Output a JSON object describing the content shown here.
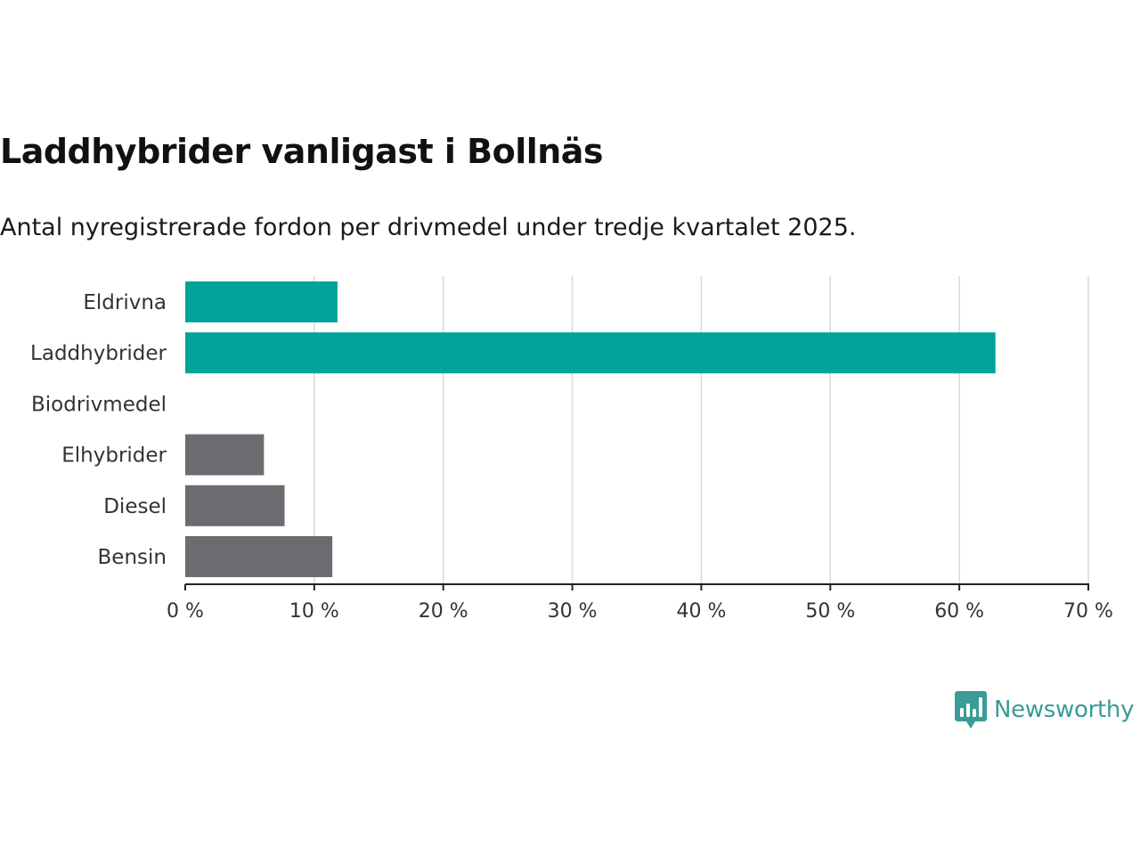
{
  "title": "Laddhybrider vanligast i Bollnäs",
  "subtitle": "Antal nyregistrerade fordon per drivmedel under tredje kvartalet 2025.",
  "brand": {
    "name": "Newsworthy",
    "icon": "newsworthy-logo-icon",
    "color": "#3a9b97"
  },
  "chart_data": {
    "type": "bar",
    "orientation": "horizontal",
    "categories": [
      "Eldrivna",
      "Laddhybrider",
      "Biodrivmedel",
      "Elhybrider",
      "Diesel",
      "Bensin"
    ],
    "values": [
      11.8,
      62.8,
      0,
      6.1,
      7.7,
      11.4
    ],
    "colors": [
      "#00a39a",
      "#00a39a",
      "#00a39a",
      "#6c6b70",
      "#6c6b70",
      "#6c6b70"
    ],
    "xlim": [
      0,
      70
    ],
    "xticks": [
      0,
      10,
      20,
      30,
      40,
      50,
      60,
      70
    ],
    "tick_suffix": " %",
    "grid": true
  }
}
